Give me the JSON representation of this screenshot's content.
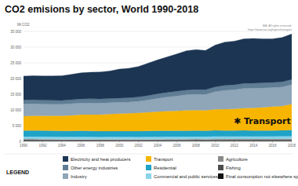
{
  "chart_data": {
    "type": "area",
    "stacked": true,
    "title": "CO2 emisions by sector, World 1990-2018",
    "y_label": "Mt CO2",
    "annotation": "✱ Transport",
    "notes": [
      "IEA. All rights reserved.",
      "https://www.iea.org/topics/transport"
    ],
    "legend_title": "LEGEND",
    "legend": "bottom",
    "grid": true,
    "x": [
      1990,
      1991,
      1992,
      1993,
      1994,
      1995,
      1996,
      1997,
      1998,
      1999,
      2000,
      2001,
      2002,
      2003,
      2004,
      2005,
      2006,
      2007,
      2008,
      2009,
      2010,
      2011,
      2012,
      2013,
      2014,
      2015,
      2016,
      2017,
      2018
    ],
    "xlim": [
      1990,
      2018
    ],
    "xticks": [
      1990,
      1992,
      1994,
      1996,
      1998,
      2000,
      2002,
      2004,
      2006,
      2008,
      2010,
      2012,
      2014,
      2016,
      2018
    ],
    "ylim": [
      0,
      35000
    ],
    "yticks": [
      0,
      {
        "value": 5000,
        "label": "5 000"
      },
      {
        "value": 10000,
        "label": "10 000"
      },
      {
        "value": 15000,
        "label": "15 000"
      },
      {
        "value": 20000,
        "label": "20 000"
      },
      {
        "value": 25000,
        "label": "25 000"
      },
      {
        "value": 30000,
        "label": "30 000"
      },
      {
        "value": 35000,
        "label": "35 000"
      }
    ],
    "series": [
      {
        "name": "Electricity and heat producers",
        "color": "#1c3553",
        "values": [
          7600,
          7650,
          7700,
          7750,
          7850,
          8050,
          8300,
          8450,
          8600,
          8800,
          9200,
          9400,
          9700,
          10300,
          10800,
          11300,
          11900,
          12500,
          12700,
          12500,
          13300,
          13800,
          13900,
          14200,
          14200,
          14000,
          13900,
          14100,
          14500
        ]
      },
      {
        "name": "Other energy industries",
        "color": "#5f7d95",
        "values": [
          1250,
          1250,
          1240,
          1230,
          1240,
          1260,
          1280,
          1300,
          1300,
          1310,
          1340,
          1350,
          1360,
          1400,
          1430,
          1450,
          1470,
          1490,
          1500,
          1480,
          1540,
          1560,
          1570,
          1580,
          1590,
          1600,
          1600,
          1620,
          1650
        ]
      },
      {
        "name": "Industry",
        "color": "#8fa5b8",
        "values": [
          3900,
          3850,
          3750,
          3700,
          3650,
          3750,
          3750,
          3750,
          3650,
          3600,
          3600,
          3600,
          3700,
          3950,
          4250,
          4500,
          4750,
          5000,
          5100,
          5100,
          5600,
          6000,
          6100,
          6300,
          6300,
          6200,
          6100,
          6100,
          6200
        ]
      },
      {
        "name": "Transport",
        "color": "#f7b500",
        "values": [
          4600,
          4650,
          4700,
          4750,
          4850,
          4950,
          5100,
          5200,
          5300,
          5450,
          5600,
          5650,
          5800,
          5900,
          6100,
          6250,
          6350,
          6500,
          6500,
          6450,
          6700,
          6800,
          6900,
          7050,
          7200,
          7400,
          7600,
          7750,
          8250
        ]
      },
      {
        "name": "Residential",
        "color": "#1fa3c7",
        "values": [
          1900,
          1950,
          1930,
          1920,
          1870,
          1880,
          1920,
          1860,
          1820,
          1830,
          1830,
          1850,
          1850,
          1890,
          1900,
          1900,
          1870,
          1850,
          1880,
          1880,
          1920,
          1860,
          1850,
          1920,
          1860,
          1850,
          1860,
          1880,
          1950
        ]
      },
      {
        "name": "Commercial and public services",
        "color": "#8ad3ea",
        "values": [
          780,
          790,
          790,
          780,
          770,
          780,
          800,
          790,
          780,
          790,
          800,
          810,
          800,
          820,
          820,
          820,
          810,
          800,
          810,
          810,
          830,
          820,
          810,
          820,
          810,
          810,
          810,
          830,
          850
        ]
      },
      {
        "name": "Agriculture",
        "color": "#8a8a8a",
        "values": [
          390,
          390,
          380,
          370,
          360,
          360,
          370,
          370,
          360,
          360,
          360,
          350,
          350,
          360,
          370,
          380,
          390,
          400,
          410,
          400,
          420,
          430,
          440,
          440,
          440,
          440,
          450,
          450,
          460
        ]
      },
      {
        "name": "Fishing",
        "color": "#4d4d4d",
        "values": [
          30,
          30,
          30,
          30,
          30,
          30,
          30,
          30,
          30,
          30,
          30,
          30,
          30,
          30,
          30,
          30,
          30,
          30,
          30,
          30,
          30,
          30,
          30,
          30,
          30,
          30,
          30,
          30,
          30
        ]
      },
      {
        "name": "Final consumption not elsewhere specified",
        "color": "#111111",
        "values": [
          320,
          300,
          280,
          270,
          260,
          250,
          250,
          240,
          230,
          230,
          220,
          220,
          220,
          230,
          240,
          250,
          260,
          270,
          280,
          280,
          290,
          290,
          290,
          290,
          300,
          300,
          300,
          300,
          310
        ]
      }
    ]
  }
}
